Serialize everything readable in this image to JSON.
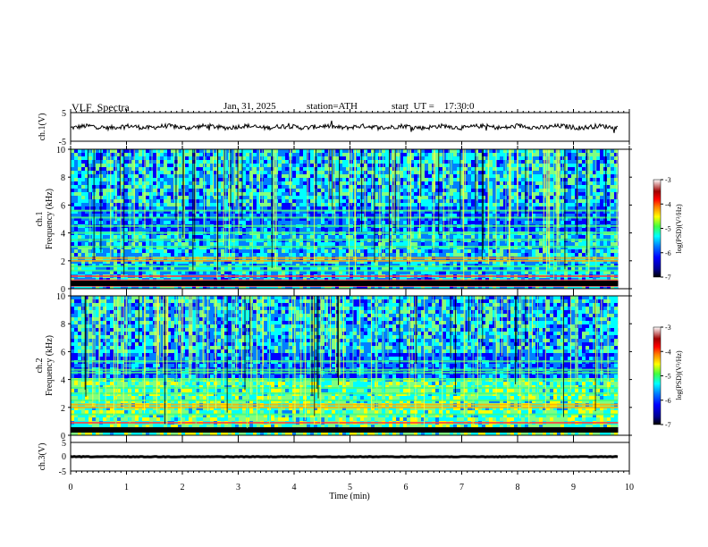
{
  "header": {
    "title": "VLF  Spectra",
    "date": "Jan. 31, 2025",
    "station": "station=ATH",
    "start_ut": "start  UT =    17:30:0"
  },
  "chart_data": [
    {
      "type": "line",
      "title": "",
      "ylabel": "ch.1(V)",
      "ylim": [
        -5,
        5
      ],
      "yticks": [
        "5",
        "-5"
      ],
      "xlim": [
        0,
        10
      ],
      "description_values": "waveform fluctuating around about 0 V with spikes up to about ±1.5 V",
      "series": [
        {
          "values_amplitude_range": [
            -1.5,
            1.5
          ],
          "baseline": 0
        }
      ]
    },
    {
      "type": "heatmap",
      "ylabel": "Frequency  (kHz)",
      "channel_label": "ch.1",
      "ylim": [
        0,
        10
      ],
      "yticks": [
        "0",
        "2",
        "4",
        "6",
        "8",
        "10"
      ],
      "xlim": [
        0,
        10
      ],
      "colorbar": {
        "label": "log(PSD)(V²/Hz)",
        "ticks": [
          "-3",
          "-4",
          "-5",
          "-6",
          "-7"
        ],
        "range": [
          -7,
          -3
        ]
      },
      "bands_khz": [
        0.2,
        0.4,
        0.6,
        0.9,
        1.3,
        1.6,
        2.0,
        2.2,
        3.0,
        3.5,
        4.0,
        4.5,
        5.1,
        5.6
      ]
    },
    {
      "type": "heatmap",
      "ylabel": "Frequency  (kHz)",
      "channel_label": "ch.2",
      "ylim": [
        0,
        10
      ],
      "yticks": [
        "0",
        "2",
        "4",
        "6",
        "8",
        "10"
      ],
      "xlim": [
        0,
        10
      ],
      "colorbar": {
        "label": "log(PSD)(V²/Hz)",
        "ticks": [
          "-3",
          "-4",
          "-5",
          "-6",
          "-7"
        ],
        "range": [
          -7,
          -3
        ]
      },
      "bands_khz": [
        0.3,
        0.9,
        1.5,
        2.0,
        2.2,
        2.5,
        3.0,
        3.4,
        4.0,
        4.5,
        4.7,
        5.3
      ]
    },
    {
      "type": "line",
      "ylabel": "ch.3(V)",
      "ylim": [
        -5,
        5
      ],
      "yticks": [
        "5",
        "0",
        "-5"
      ],
      "xlim": [
        0,
        10
      ],
      "series": [
        {
          "values_amplitude_range": [
            -0.3,
            0.3
          ],
          "baseline": 0
        }
      ]
    }
  ],
  "xaxis": {
    "label": "Time  (min)",
    "ticks": [
      "0",
      "1",
      "2",
      "3",
      "4",
      "5",
      "6",
      "7",
      "8",
      "9",
      "10"
    ],
    "data_end_min": 9.8
  },
  "colors": {
    "colormap": [
      "#000000",
      "#00008f",
      "#0000ff",
      "#0080ff",
      "#00ffff",
      "#80ff80",
      "#ffff00",
      "#ff8000",
      "#ff0000",
      "#800000",
      "#ffffff"
    ]
  }
}
